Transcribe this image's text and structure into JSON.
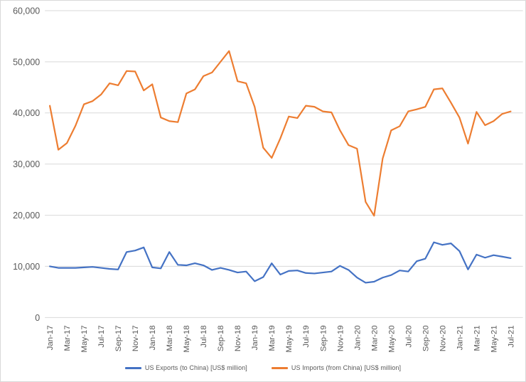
{
  "chart_data": {
    "type": "line",
    "title": "",
    "x": [
      "Jan-17",
      "Feb-17",
      "Mar-17",
      "Apr-17",
      "May-17",
      "Jun-17",
      "Jul-17",
      "Aug-17",
      "Sep-17",
      "Oct-17",
      "Nov-17",
      "Dec-17",
      "Jan-18",
      "Feb-18",
      "Mar-18",
      "Apr-18",
      "May-18",
      "Jun-18",
      "Jul-18",
      "Aug-18",
      "Sep-18",
      "Oct-18",
      "Nov-18",
      "Dec-18",
      "Jan-19",
      "Feb-19",
      "Mar-19",
      "Apr-19",
      "May-19",
      "Jun-19",
      "Jul-19",
      "Aug-19",
      "Sep-19",
      "Oct-19",
      "Nov-19",
      "Dec-19",
      "Jan-20",
      "Feb-20",
      "Mar-20",
      "Apr-20",
      "May-20",
      "Jun-20",
      "Jul-20",
      "Aug-20",
      "Sep-20",
      "Oct-20",
      "Nov-20",
      "Dec-20",
      "Jan-21",
      "Feb-21",
      "Mar-21",
      "Apr-21",
      "May-21",
      "Jun-21",
      "Jul-21"
    ],
    "x_tick_labels": [
      "Jan-17",
      "Mar-17",
      "May-17",
      "Jul-17",
      "Sep-17",
      "Nov-17",
      "Jan-18",
      "Mar-18",
      "May-18",
      "Jul-18",
      "Sep-18",
      "Nov-18",
      "Jan-19",
      "Mar-19",
      "May-19",
      "Jul-19",
      "Sep-19",
      "Nov-19",
      "Jan-20",
      "Mar-20",
      "May-20",
      "Jul-20",
      "Sep-20",
      "Nov-20",
      "Jan-21",
      "Mar-21",
      "May-21",
      "Jul-21"
    ],
    "series": [
      {
        "name": "US Exports (to China) [US$ million]",
        "color": "#4472C4",
        "values": [
          10000,
          9700,
          9700,
          9700,
          9800,
          9900,
          9700,
          9500,
          9400,
          12800,
          13100,
          13700,
          9800,
          9600,
          12800,
          10300,
          10200,
          10600,
          10200,
          9300,
          9700,
          9300,
          8800,
          9000,
          7100,
          7900,
          10600,
          8400,
          9100,
          9200,
          8700,
          8600,
          8800,
          9000,
          10100,
          9300,
          7800,
          6800,
          7000,
          7800,
          8300,
          9200,
          9000,
          11000,
          11500,
          14700,
          14200,
          14500,
          13000,
          9400,
          12300,
          11700,
          12200,
          11900,
          11600
        ]
      },
      {
        "name": "US Imports (from China) [US$ million]",
        "color": "#ED7D31",
        "values": [
          41400,
          32800,
          34100,
          37500,
          41700,
          42300,
          43600,
          45800,
          45400,
          48200,
          48100,
          44400,
          45600,
          39100,
          38400,
          38200,
          43800,
          44600,
          47200,
          47900,
          50000,
          52100,
          46200,
          45800,
          41200,
          33200,
          31200,
          35000,
          39300,
          39000,
          41400,
          41200,
          40300,
          40100,
          36600,
          33700,
          33000,
          22600,
          19900,
          31100,
          36600,
          37400,
          40300,
          40700,
          41200,
          44600,
          44800,
          42000,
          39100,
          34000,
          40200,
          37600,
          38400,
          39800,
          40300
        ]
      }
    ],
    "ylim": [
      0,
      60000
    ],
    "ytick_interval": 10000,
    "y_tick_labels": [
      "0",
      "10,000",
      "20,000",
      "30,000",
      "40,000",
      "50,000",
      "60,000"
    ],
    "grid": "horizontal",
    "legend_position": "bottom",
    "axis_text_color": "#595959",
    "gridline_color": "#D9D9D9"
  }
}
